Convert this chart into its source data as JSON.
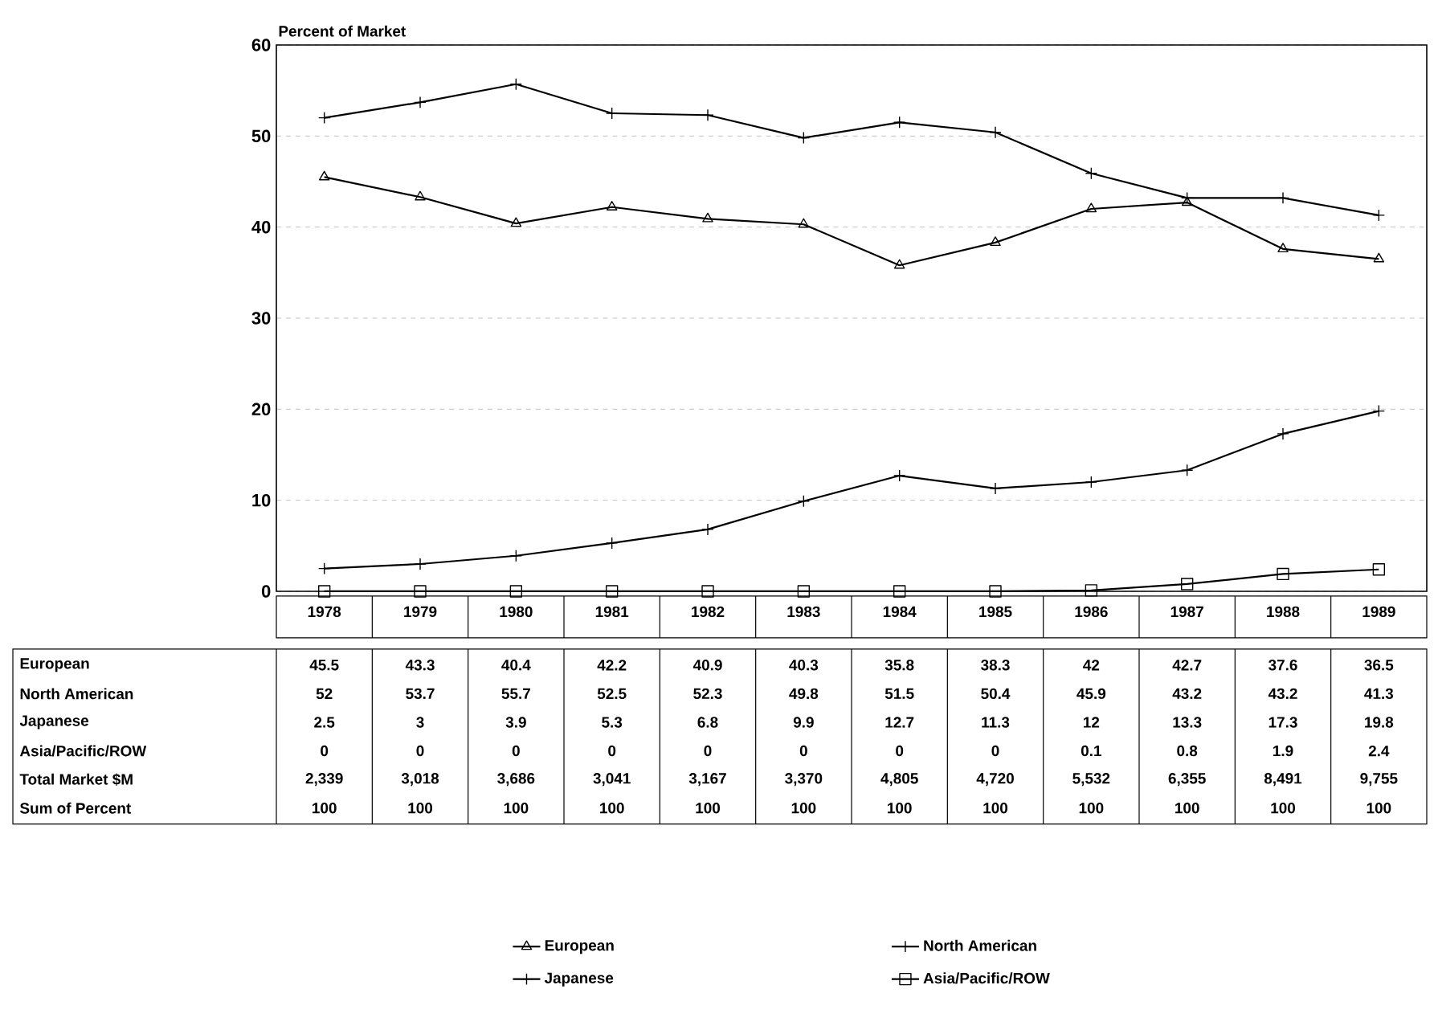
{
  "chart_data": {
    "type": "line",
    "ylabel": "Percent of Market",
    "categories": [
      "1978",
      "1979",
      "1980",
      "1981",
      "1982",
      "1983",
      "1984",
      "1985",
      "1986",
      "1987",
      "1988",
      "1989"
    ],
    "series": [
      {
        "name": "European",
        "color": "#000000",
        "marker": "triangle",
        "values": [
          45.5,
          43.3,
          40.4,
          42.2,
          40.9,
          40.3,
          35.8,
          38.3,
          42,
          42.7,
          37.6,
          36.5
        ]
      },
      {
        "name": "North American",
        "color": "#000000",
        "marker": "cross",
        "values": [
          52,
          53.7,
          55.7,
          52.5,
          52.3,
          49.8,
          51.5,
          50.4,
          45.9,
          43.2,
          43.2,
          41.3
        ]
      },
      {
        "name": "Japanese",
        "color": "#000000",
        "marker": "cross",
        "values": [
          2.5,
          3,
          3.9,
          5.3,
          6.8,
          9.9,
          12.7,
          11.3,
          12,
          13.3,
          17.3,
          19.8
        ]
      },
      {
        "name": "Asia/Pacific/ROW",
        "color": "#000000",
        "marker": "square",
        "values": [
          0,
          0,
          0,
          0,
          0,
          0,
          0,
          0,
          0.1,
          0.8,
          1.9,
          2.4
        ]
      }
    ],
    "ylim": [
      0,
      60
    ],
    "yticks": [
      0,
      10,
      20,
      30,
      40,
      50,
      60
    ],
    "grid": "y",
    "legend": "bottom",
    "data_labels": true,
    "annotations": [
      "Total Market $M",
      "2,339",
      "3,018",
      "3,686",
      "3,041",
      "3,167",
      "3,370",
      "4,805",
      "4,720",
      "5,532",
      "6,355",
      "8,491",
      "9,755",
      "Sum of Percent",
      "100",
      "100",
      "100",
      "100",
      "100",
      "100",
      "100",
      "100",
      "100",
      "100",
      "100",
      "100"
    ]
  }
}
